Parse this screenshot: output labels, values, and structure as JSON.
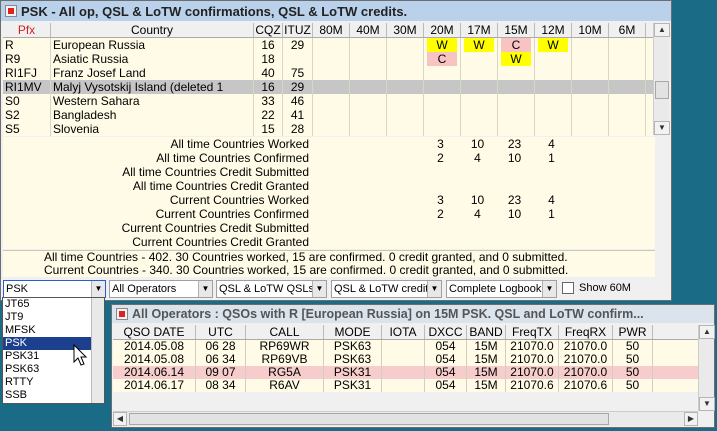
{
  "main": {
    "title": "PSK - All op, QSL & LoTW confirmations, QSL & LoTW credits.",
    "header": {
      "pfx": "Pfx",
      "country": "Country",
      "cqz": "CQZ",
      "ituz": "ITUZ",
      "bands": [
        "80M",
        "40M",
        "30M",
        "20M",
        "17M",
        "15M",
        "12M",
        "10M",
        "6M"
      ]
    },
    "rows": [
      {
        "pfx": "R",
        "country": "European Russia",
        "cqz": "16",
        "ituz": "29",
        "cells": [
          "",
          "",
          "",
          "W",
          "W",
          "C",
          "W",
          "",
          ""
        ],
        "colors": [
          "",
          "",
          "",
          "yel",
          "yel",
          "pink",
          "yel",
          "",
          ""
        ]
      },
      {
        "pfx": "R9",
        "country": "Asiatic Russia",
        "cqz": "18",
        "ituz": "",
        "cells": [
          "",
          "",
          "",
          "C",
          "",
          "W",
          "",
          "",
          ""
        ],
        "colors": [
          "",
          "",
          "",
          "pink",
          "",
          "yel",
          "",
          "",
          ""
        ]
      },
      {
        "pfx": "RI1FJ",
        "country": "Franz Josef Land",
        "cqz": "40",
        "ituz": "75",
        "cells": [
          "",
          "",
          "",
          "",
          "",
          "",
          "",
          "",
          ""
        ],
        "colors": [
          "",
          "",
          "",
          "",
          "",
          "",
          "",
          "",
          ""
        ]
      },
      {
        "pfx": "RI1MV",
        "country": "Malyj Vysotskij Island  (deleted 1",
        "cqz": "16",
        "ituz": "29",
        "cells": [
          "",
          "",
          "",
          "",
          "",
          "",
          "",
          "",
          ""
        ],
        "colors": [
          "",
          "",
          "",
          "",
          "",
          "",
          "",
          "",
          ""
        ],
        "selected": true
      },
      {
        "pfx": "S0",
        "country": "Western Sahara",
        "cqz": "33",
        "ituz": "46",
        "cells": [
          "",
          "",
          "",
          "",
          "",
          "",
          "",
          "",
          ""
        ],
        "colors": [
          "",
          "",
          "",
          "",
          "",
          "",
          "",
          "",
          ""
        ]
      },
      {
        "pfx": "S2",
        "country": "Bangladesh",
        "cqz": "22",
        "ituz": "41",
        "cells": [
          "",
          "",
          "",
          "",
          "",
          "",
          "",
          "",
          ""
        ],
        "colors": [
          "",
          "",
          "",
          "",
          "",
          "",
          "",
          "",
          ""
        ]
      },
      {
        "pfx": "S5",
        "country": "Slovenia",
        "cqz": "15",
        "ituz": "28",
        "cells": [
          "",
          "",
          "",
          "",
          "",
          "",
          "",
          "",
          ""
        ],
        "colors": [
          "",
          "",
          "",
          "",
          "",
          "",
          "",
          "",
          ""
        ]
      }
    ],
    "summary": [
      {
        "label": "All time Countries Worked",
        "vals": [
          "3",
          "10",
          "23",
          "4"
        ]
      },
      {
        "label": "All time Countries Confirmed",
        "vals": [
          "2",
          "4",
          "10",
          "1"
        ]
      },
      {
        "label": "All time Countries Credit Submitted",
        "vals": [
          "",
          "",
          "",
          ""
        ]
      },
      {
        "label": "All time Countries Credit Granted",
        "vals": [
          "",
          "",
          "",
          ""
        ]
      },
      {
        "label": "Current Countries Worked",
        "vals": [
          "3",
          "10",
          "23",
          "4"
        ]
      },
      {
        "label": "Current Countries Confirmed",
        "vals": [
          "2",
          "4",
          "10",
          "1"
        ]
      },
      {
        "label": "Current Countries Credit Submitted",
        "vals": [
          "",
          "",
          "",
          ""
        ]
      },
      {
        "label": "Current Countries Credit Granted",
        "vals": [
          "",
          "",
          "",
          ""
        ]
      }
    ],
    "totals": {
      "all_time": "All time Countries - 402.  30 Countries worked, 15 are confirmed. 0 credit granted, and 0 submitted.",
      "current": "Current Countries - 340.  30 Countries worked, 15 are confirmed. 0 credit granted, and 0 submitted."
    },
    "filters": {
      "mode": "PSK",
      "operators": "All Operators",
      "qsl1": "QSL & LoTW QSLs",
      "qsl2": "QSL & LoTW credits",
      "logbook": "Complete Logbook",
      "show60": "Show 60M"
    },
    "mode_options": [
      "JT65",
      "JT9",
      "MFSK",
      "PSK",
      "PSK31",
      "PSK63",
      "RTTY",
      "SSB"
    ],
    "mode_selected": "PSK"
  },
  "sub": {
    "title": "All Operators : QSOs with R [European Russia] on 15M PSK. QSL and LoTW confirm...",
    "header": [
      "QSO  DATE",
      "UTC",
      "CALL",
      "MODE",
      "IOTA",
      "DXCC",
      "BAND",
      "FreqTX",
      "FreqRX",
      "PWR"
    ],
    "rows": [
      {
        "cells": [
          "2014.05.08",
          "06 28",
          "RP69WR",
          "PSK63",
          "",
          "054",
          "15M",
          "21070.0",
          "21070.0",
          "50"
        ],
        "pink": false
      },
      {
        "cells": [
          "2014.05.08",
          "06 34",
          "RP69VB",
          "PSK63",
          "",
          "054",
          "15M",
          "21070.0",
          "21070.0",
          "50"
        ],
        "pink": false
      },
      {
        "cells": [
          "2014.06.14",
          "09 07",
          "RG5A",
          "PSK31",
          "",
          "054",
          "15M",
          "21070.0",
          "21070.0",
          "50"
        ],
        "pink": true
      },
      {
        "cells": [
          "2014.06.17",
          "08 34",
          "R6AV",
          "PSK31",
          "",
          "054",
          "15M",
          "21070.6",
          "21070.6",
          "50"
        ],
        "pink": false
      }
    ]
  }
}
